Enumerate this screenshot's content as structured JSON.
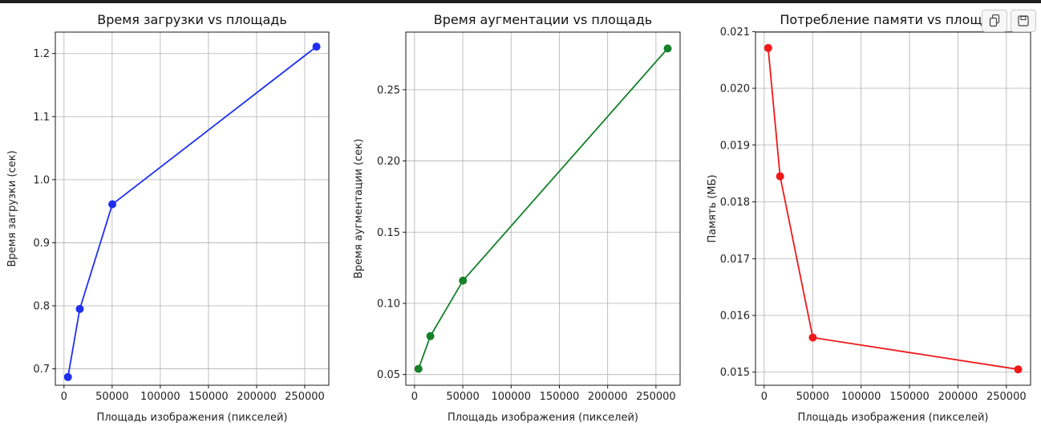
{
  "chart_data": [
    {
      "type": "line",
      "title": "Время загрузки vs площадь",
      "xlabel": "Площадь изображения (пикселей)",
      "ylabel": "Время загрузки (сек)",
      "color": "#1f2ff0",
      "x": [
        4096,
        16384,
        50176,
        262144
      ],
      "y": [
        0.687,
        0.795,
        0.961,
        1.211
      ],
      "xlim": [
        -9000,
        275000
      ],
      "ylim": [
        0.674,
        1.234
      ],
      "xticks": [
        0,
        50000,
        100000,
        150000,
        200000,
        250000
      ],
      "yticks": [
        0.7,
        0.8,
        0.9,
        1.0,
        1.1,
        1.2
      ],
      "xtick_labels": [
        "0",
        "50000",
        "100000",
        "150000",
        "200000",
        "250000"
      ],
      "ytick_labels": [
        "0.7",
        "0.8",
        "0.9",
        "1.0",
        "1.1",
        "1.2"
      ],
      "grid": true
    },
    {
      "type": "line",
      "title": "Время аугментации vs площадь",
      "xlabel": "Площадь изображения (пикселей)",
      "ylabel": "Время аугментации (сек)",
      "color": "#15812a",
      "x": [
        4096,
        16384,
        50176,
        262144
      ],
      "y": [
        0.054,
        0.077,
        0.116,
        0.279
      ],
      "xlim": [
        -9000,
        275000
      ],
      "ylim": [
        0.0425,
        0.2905
      ],
      "xticks": [
        0,
        50000,
        100000,
        150000,
        200000,
        250000
      ],
      "yticks": [
        0.05,
        0.1,
        0.15,
        0.2,
        0.25
      ],
      "xtick_labels": [
        "0",
        "50000",
        "100000",
        "150000",
        "200000",
        "250000"
      ],
      "ytick_labels": [
        "0.05",
        "0.10",
        "0.15",
        "0.20",
        "0.25"
      ],
      "grid": true
    },
    {
      "type": "line",
      "title": "Потребление памяти vs площадь",
      "xlabel": "Площадь изображения (пикселей)",
      "ylabel": "Память (МБ)",
      "color": "#f01818",
      "x": [
        4096,
        16384,
        50176,
        262144
      ],
      "y": [
        0.02071,
        0.01845,
        0.01561,
        0.01505
      ],
      "xlim": [
        -9000,
        275000
      ],
      "ylim": [
        0.01477,
        0.02099
      ],
      "xticks": [
        0,
        50000,
        100000,
        150000,
        200000,
        250000
      ],
      "yticks": [
        0.015,
        0.016,
        0.017,
        0.018,
        0.019,
        0.02,
        0.021
      ],
      "xtick_labels": [
        "0",
        "50000",
        "100000",
        "150000",
        "200000",
        "250000"
      ],
      "ytick_labels": [
        "0.015",
        "0.016",
        "0.017",
        "0.018",
        "0.019",
        "0.020",
        "0.021"
      ],
      "grid": true
    }
  ]
}
